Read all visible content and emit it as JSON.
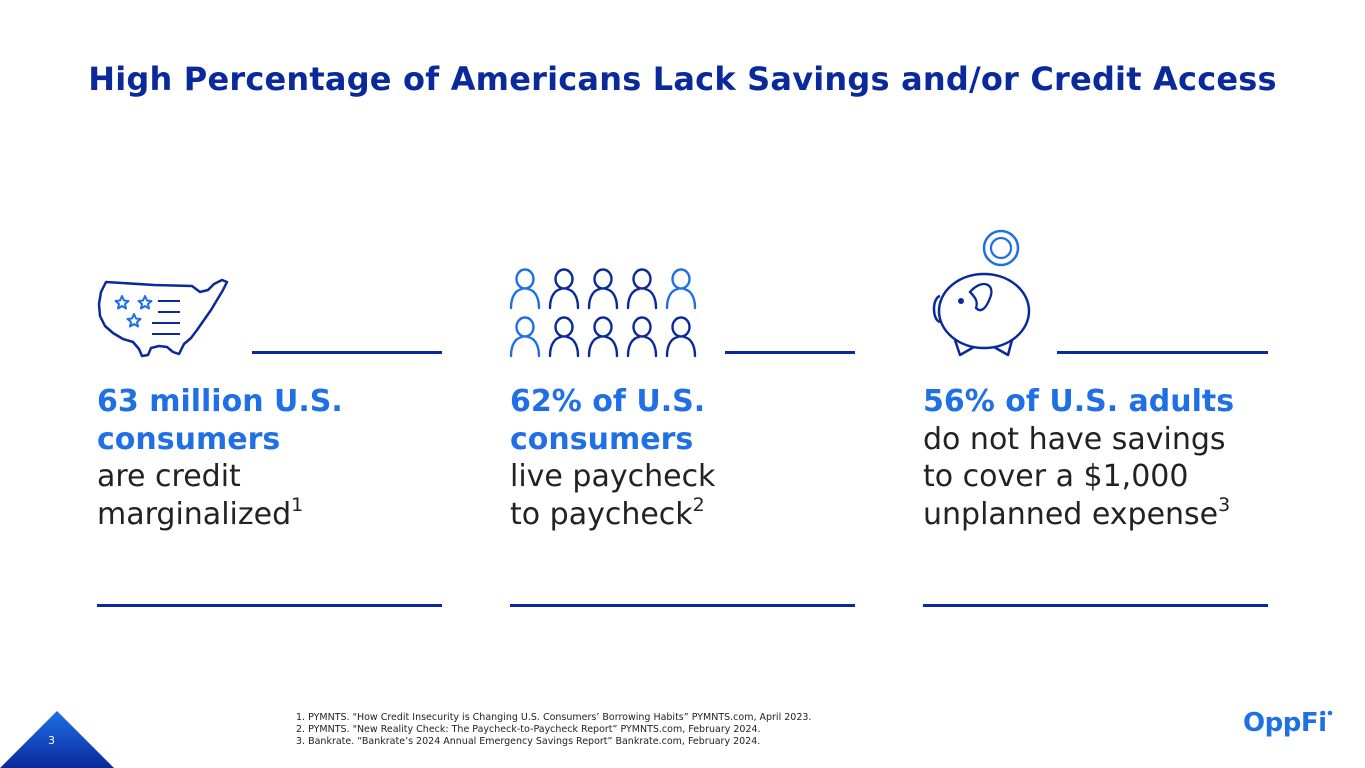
{
  "title": "High Percentage of Americans Lack Savings and/or Credit Access",
  "stats": [
    {
      "highlight_l1": "63 million U.S.",
      "highlight_l2": "consumers",
      "rest_l1": "are credit",
      "rest_l2": "marginalized",
      "ref": "1",
      "icon": "usa-map-icon"
    },
    {
      "highlight_l1": "62% of U.S.",
      "highlight_l2": "consumers",
      "rest_l1": "live paycheck",
      "rest_l2": "to paycheck",
      "ref": "2",
      "icon": "people-group-icon"
    },
    {
      "highlight_l1": "56% of U.S. adults",
      "rest_l1": "do not have savings",
      "rest_l2": "to cover a $1,000",
      "rest_l3": "unplanned expense",
      "ref": "3",
      "icon": "piggy-bank-icon"
    }
  ],
  "footnotes": [
    "1. PYMNTS. \"How Credit Insecurity is Changing U.S. Consumers’ Borrowing Habits” PYMNTS.com, April 2023.",
    "2. PYMNTS. \"New Reality Check: The Paycheck-to-Paycheck Report” PYMNTS.com, February 2024.",
    "3. Bankrate. “Bankrate’s 2024 Annual Emergency Savings Report” Bankrate.com, February 2024."
  ],
  "page_number": "3",
  "logo": "OppFi",
  "colors": {
    "navy": "#0a2a9c",
    "accent": "#1f6fe5",
    "text": "#222222"
  }
}
